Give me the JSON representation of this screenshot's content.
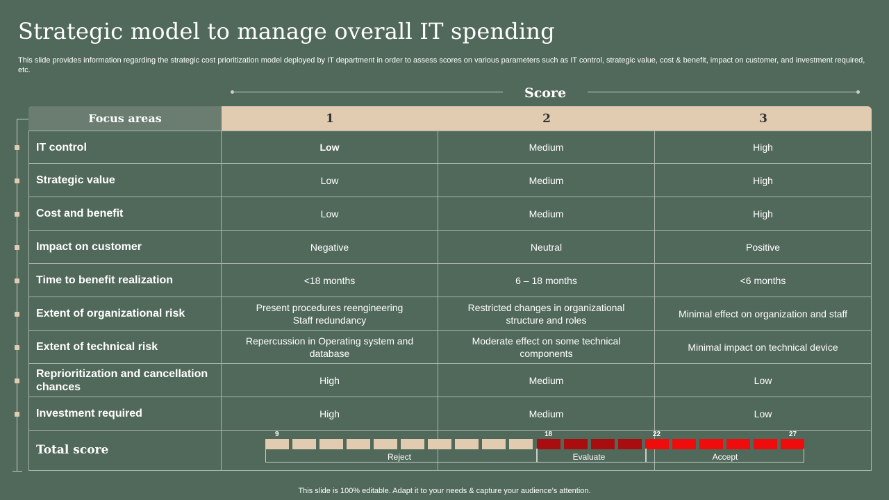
{
  "title": "Strategic model to manage overall IT spending",
  "subtitle": "This slide provides information regarding the strategic cost prioritization model deployed by IT department in order to assess scores on various parameters such as IT control, strategic value, cost & benefit, impact on customer, and investment required, etc.",
  "score_label": "Score",
  "table": {
    "header_focus": "Focus areas",
    "score_columns": [
      "1",
      "2",
      "3"
    ],
    "rows": [
      {
        "focus": "IT control",
        "s1": "Low",
        "s2": "Medium",
        "s3": "High"
      },
      {
        "focus": "Strategic value",
        "s1": "Low",
        "s2": "Medium",
        "s3": "High"
      },
      {
        "focus": "Cost and benefit",
        "s1": "Low",
        "s2": "Medium",
        "s3": "High"
      },
      {
        "focus": "Impact on customer",
        "s1": "Negative",
        "s2": "Neutral",
        "s3": "Positive"
      },
      {
        "focus": "Time to benefit realization",
        "s1": "<18 months",
        "s2": "6 – 18 months",
        "s3": "<6 months"
      },
      {
        "focus": "Extent of organizational risk",
        "s1": "Present procedures reengineering\nStaff redundancy",
        "s2": "Restricted changes in organizational structure and roles",
        "s3": "Minimal effect on organization and staff"
      },
      {
        "focus": "Extent of technical risk",
        "s1": "Repercussion in Operating system and database",
        "s2": "Moderate effect on some technical components",
        "s3": "Minimal impact on technical device"
      },
      {
        "focus": "Reprioritization and cancellation chances",
        "s1": "High",
        "s2": "Medium",
        "s3": "Low"
      },
      {
        "focus": "Investment required",
        "s1": "High",
        "s2": "Medium",
        "s3": "Low"
      }
    ],
    "total_label": "Total score"
  },
  "score_bar": {
    "markers": [
      "9",
      "18",
      "22",
      "27"
    ],
    "zones": [
      "Reject",
      "Evaluate",
      "Accept"
    ],
    "colors": {
      "reject": "#e1cbb1",
      "evaluate": "#a80d10",
      "accept": "#ee0c0c"
    }
  },
  "footer": "This slide is 100% editable. Adapt it to your needs & capture your audience’s attention.",
  "colors": {
    "background": "#51695a",
    "header": "#e1cbb1",
    "focus_header": "#6a7d70"
  }
}
